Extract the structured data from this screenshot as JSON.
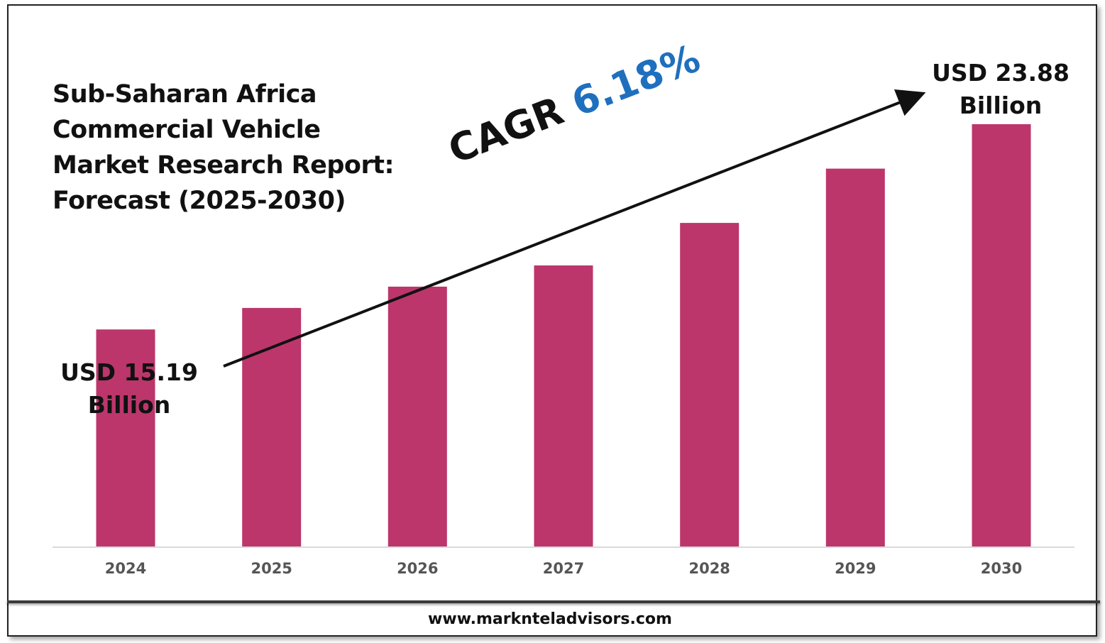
{
  "title_lines": [
    "Sub-Saharan Africa",
    "Commercial Vehicle",
    "Market Research Report:",
    "Forecast (2025-2030)"
  ],
  "start_label": [
    "USD 15.19",
    "Billion"
  ],
  "end_label": [
    "USD 23.88",
    "Billion"
  ],
  "cagr": {
    "prefix": "CAGR",
    "value": "6.18%"
  },
  "footer": {
    "url": "www.marknteladvisors.com"
  },
  "colors": {
    "bar": "#bc366c",
    "cagr": "#1f6fbf",
    "axis": "#d9d9d9",
    "tick_text": "#555555"
  },
  "chart_data": {
    "type": "bar",
    "categories": [
      "2024",
      "2025",
      "2026",
      "2027",
      "2028",
      "2029",
      "2030"
    ],
    "values": [
      15.19,
      16.1,
      17.0,
      17.9,
      19.7,
      22.0,
      23.88
    ],
    "unit": "USD Billion",
    "ylim": [
      6,
      25
    ],
    "grid": false,
    "legend": "none",
    "annotations": [
      "USD 15.19 Billion",
      "USD 23.88 Billion",
      "CAGR 6.18%"
    ]
  }
}
